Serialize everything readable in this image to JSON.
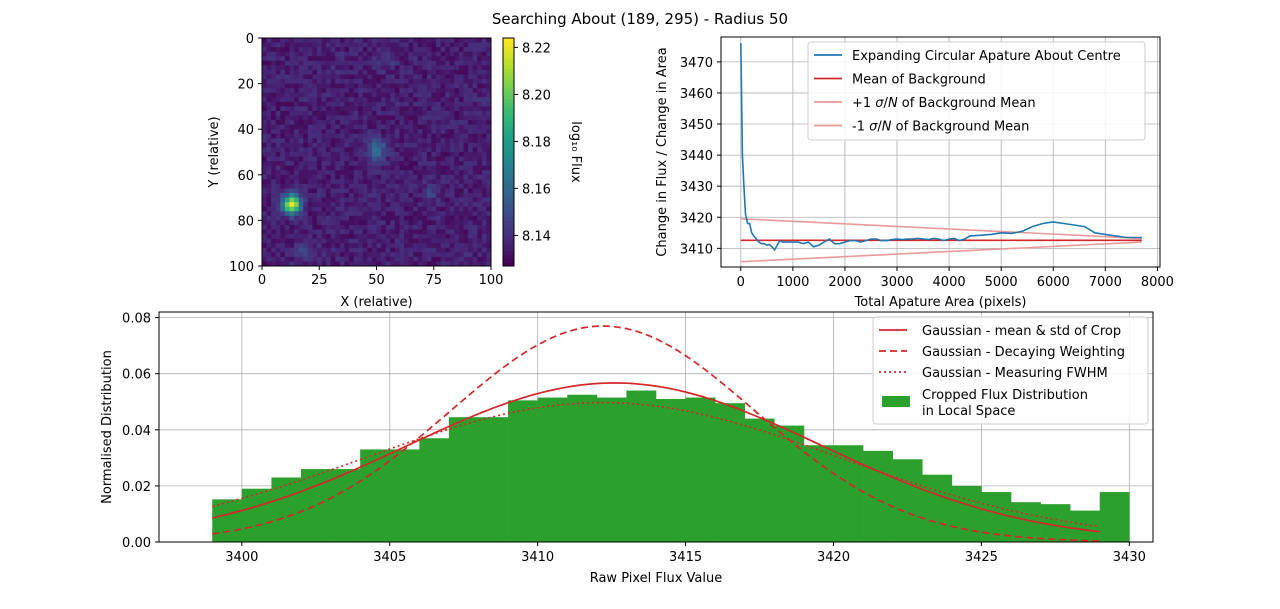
{
  "figure": {
    "title": "Searching About (189, 295) - Radius 50"
  },
  "chart_data": [
    {
      "type": "heatmap",
      "name": "crop-image",
      "xlabel": "X (relative)",
      "ylabel": "Y (relative)",
      "xlim": [
        0,
        100
      ],
      "ylim": [
        100,
        0
      ],
      "x_ticks": [
        "0",
        "25",
        "50",
        "75",
        "100"
      ],
      "y_ticks": [
        "0",
        "20",
        "40",
        "60",
        "80",
        "100"
      ],
      "colormap": "viridis",
      "colorbar": {
        "label": "log₁₀ Flux",
        "range": [
          8.127,
          8.224
        ],
        "ticks": [
          "8.14",
          "8.16",
          "8.18",
          "8.20",
          "8.22"
        ]
      },
      "background_level": 8.135,
      "sources": [
        {
          "x": 13,
          "y": 73,
          "peak": 8.222,
          "sigma": 2.8
        },
        {
          "x": 50,
          "y": 49,
          "peak": 8.16,
          "sigma": 3.2
        },
        {
          "x": 18,
          "y": 93,
          "peak": 8.145,
          "sigma": 2.5
        },
        {
          "x": 74,
          "y": 68,
          "peak": 8.145,
          "sigma": 2.8
        },
        {
          "x": 55,
          "y": 11,
          "peak": 8.14,
          "sigma": 3
        },
        {
          "x": 96,
          "y": 28,
          "peak": 8.14,
          "sigma": 3
        },
        {
          "x": 33,
          "y": 13,
          "peak": 8.138,
          "sigma": 3
        },
        {
          "x": 90,
          "y": 93,
          "peak": 8.138,
          "sigma": 3
        }
      ]
    },
    {
      "type": "line",
      "name": "aperture-plot",
      "xlabel": "Total Apature Area (pixels)",
      "ylabel": "Change in Flux / Change in Area",
      "xlim": [
        -380,
        8050
      ],
      "ylim": [
        3404,
        3478
      ],
      "x_ticks": [
        0,
        1000,
        2000,
        3000,
        4000,
        5000,
        6000,
        7000,
        8000
      ],
      "y_ticks": [
        3410,
        3420,
        3430,
        3440,
        3450,
        3460,
        3470
      ],
      "grid": true,
      "legend_position": "upper right",
      "series": [
        {
          "name": "Expanding Circular Apature About Centre",
          "color": "#1f77b4",
          "x": [
            0,
            30,
            60,
            90,
            130,
            170,
            210,
            250,
            300,
            350,
            400,
            450,
            500,
            550,
            600,
            650,
            700,
            750,
            800,
            900,
            1000,
            1100,
            1200,
            1300,
            1400,
            1500,
            1600,
            1700,
            1800,
            1900,
            2000,
            2100,
            2200,
            2300,
            2400,
            2500,
            2600,
            2700,
            2800,
            2900,
            3000,
            3100,
            3200,
            3300,
            3400,
            3500,
            3600,
            3700,
            3800,
            3900,
            4000,
            4100,
            4200,
            4300,
            4400,
            4600,
            4800,
            5000,
            5200,
            5400,
            5600,
            5800,
            6000,
            6200,
            6400,
            6600,
            6800,
            7000,
            7200,
            7400,
            7700
          ],
          "y": [
            3476,
            3440,
            3430,
            3421,
            3418,
            3418,
            3415,
            3414,
            3413,
            3412,
            3411.5,
            3411.5,
            3411,
            3411.2,
            3410.5,
            3409.5,
            3411,
            3412.5,
            3412,
            3412,
            3412,
            3412,
            3411.5,
            3412,
            3410.5,
            3411,
            3412,
            3413,
            3411.5,
            3411.5,
            3412,
            3412.5,
            3412.5,
            3412,
            3412.5,
            3413,
            3413,
            3412.5,
            3412.5,
            3412.8,
            3413,
            3412.8,
            3413,
            3413,
            3413.2,
            3413,
            3412.8,
            3413.2,
            3413,
            3412.5,
            3413,
            3413.2,
            3412.5,
            3413,
            3414,
            3414.2,
            3414.5,
            3415,
            3414.8,
            3415.5,
            3417,
            3418,
            3418.5,
            3418,
            3417.5,
            3417,
            3415,
            3414.5,
            3414,
            3413.5,
            3413.5
          ]
        },
        {
          "name": "Mean of Background",
          "color": "#d62728",
          "x": [
            0,
            7700
          ],
          "y": [
            3412.6,
            3412.6
          ]
        },
        {
          "name": "+1 σ/N of Background Mean",
          "label_parts": [
            "+1 ",
            "σ",
            "/",
            "N",
            " of Background Mean"
          ],
          "color": "#e89999",
          "x": [
            0,
            7700
          ],
          "y": [
            3419.5,
            3413.2
          ]
        },
        {
          "name": "-1 σ/N of Background Mean",
          "label_parts": [
            "-1 ",
            "σ",
            "/",
            "N",
            " of Background Mean"
          ],
          "color": "#e89999",
          "x": [
            0,
            7700
          ],
          "y": [
            3405.7,
            3412.0
          ]
        }
      ]
    },
    {
      "type": "bar",
      "name": "flux-histogram",
      "xlabel": "Raw Pixel Flux Value",
      "ylabel": "Normalised Distribution",
      "xlim": [
        3397.2,
        3430.8
      ],
      "ylim": [
        0,
        0.082
      ],
      "x_ticks": [
        3400,
        3405,
        3410,
        3415,
        3420,
        3425,
        3430
      ],
      "y_ticks": [
        "0.00",
        "0.02",
        "0.04",
        "0.06",
        "0.08"
      ],
      "grid": true,
      "legend_position": "upper right",
      "histogram": {
        "name": "Cropped Flux Distribution",
        "name_line2": "in Local Space",
        "color": "#2ca02c",
        "bin_start": 3399,
        "bin_width": 1.0,
        "values": [
          0.0152,
          0.019,
          0.023,
          0.026,
          0.026,
          0.033,
          0.033,
          0.037,
          0.0445,
          0.0445,
          0.0505,
          0.0515,
          0.0525,
          0.0515,
          0.054,
          0.051,
          0.0515,
          0.0495,
          0.044,
          0.0415,
          0.0345,
          0.0345,
          0.0325,
          0.0295,
          0.024,
          0.02,
          0.0178,
          0.0142,
          0.0135,
          0.0112,
          0.0178
        ]
      },
      "curves": [
        {
          "name": "Gaussian - mean & std of Crop",
          "style": "solid",
          "color": "#d62728",
          "mean": 3412.6,
          "peak": 0.0567,
          "sigma": 7.0
        },
        {
          "name": "Gaussian - Decaying Weighting",
          "style": "dashed",
          "color": "#d62728",
          "mean": 3412.2,
          "peak": 0.077,
          "sigma": 5.15
        },
        {
          "name": "Gaussian - Measuring FWHM",
          "style": "dotted",
          "color": "#d62728",
          "mean": 3412.2,
          "peak": 0.0497,
          "sigma": 8.0
        }
      ]
    }
  ]
}
